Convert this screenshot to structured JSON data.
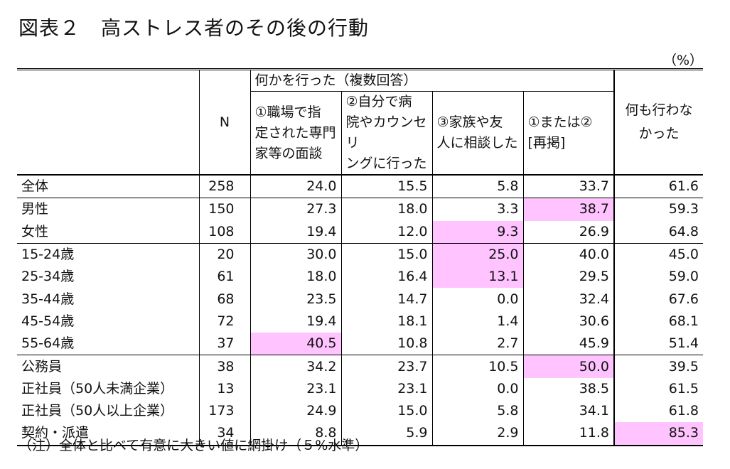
{
  "title": "図表２　高ストレス者のその後の行動",
  "unit": "（%）",
  "note": "（注）全体と比べて有意に大きい値に網掛け（５%水準）",
  "chart_data": {
    "type": "table",
    "group_header": "何かを行った（複数回答）",
    "columns": {
      "n": "N",
      "c1": [
        "①職場で指",
        "定された専門",
        "家等の面談"
      ],
      "c2": [
        "②自分で病",
        "院やカウンセリ",
        "ングに行った"
      ],
      "c3": [
        "③家族や友",
        "人に相談した"
      ],
      "c4": [
        "①または②",
        "[再掲]"
      ],
      "c5": [
        "何も行わな",
        "かった"
      ]
    },
    "rows": [
      {
        "label": "全体",
        "n": "258",
        "c1": "24.0",
        "c2": "15.5",
        "c3": "5.8",
        "c4": "33.7",
        "c5": "61.6",
        "highlight": []
      },
      {
        "label": "男性",
        "n": "150",
        "c1": "27.3",
        "c2": "18.0",
        "c3": "3.3",
        "c4": "38.7",
        "c5": "59.3",
        "highlight": [
          "c4"
        ]
      },
      {
        "label": "女性",
        "n": "108",
        "c1": "19.4",
        "c2": "12.0",
        "c3": "9.3",
        "c4": "26.9",
        "c5": "64.8",
        "highlight": [
          "c3"
        ]
      },
      {
        "label": "15-24歳",
        "n": "20",
        "c1": "30.0",
        "c2": "15.0",
        "c3": "25.0",
        "c4": "40.0",
        "c5": "45.0",
        "highlight": [
          "c3"
        ]
      },
      {
        "label": "25-34歳",
        "n": "61",
        "c1": "18.0",
        "c2": "16.4",
        "c3": "13.1",
        "c4": "29.5",
        "c5": "59.0",
        "highlight": [
          "c3"
        ]
      },
      {
        "label": "35-44歳",
        "n": "68",
        "c1": "23.5",
        "c2": "14.7",
        "c3": "0.0",
        "c4": "32.4",
        "c5": "67.6",
        "highlight": []
      },
      {
        "label": "45-54歳",
        "n": "72",
        "c1": "19.4",
        "c2": "18.1",
        "c3": "1.4",
        "c4": "30.6",
        "c5": "68.1",
        "highlight": []
      },
      {
        "label": "55-64歳",
        "n": "37",
        "c1": "40.5",
        "c2": "10.8",
        "c3": "2.7",
        "c4": "45.9",
        "c5": "51.4",
        "highlight": [
          "c1"
        ]
      },
      {
        "label": "公務員",
        "n": "38",
        "c1": "34.2",
        "c2": "23.7",
        "c3": "10.5",
        "c4": "50.0",
        "c5": "39.5",
        "highlight": [
          "c4"
        ]
      },
      {
        "label": "正社員（50人未満企業）",
        "n": "13",
        "c1": "23.1",
        "c2": "23.1",
        "c3": "0.0",
        "c4": "38.5",
        "c5": "61.5",
        "highlight": []
      },
      {
        "label": "正社員（50人以上企業）",
        "n": "173",
        "c1": "24.9",
        "c2": "15.0",
        "c3": "5.8",
        "c4": "34.1",
        "c5": "61.8",
        "highlight": []
      },
      {
        "label": "契約・派遣",
        "n": "34",
        "c1": "8.8",
        "c2": "5.9",
        "c3": "2.9",
        "c4": "11.8",
        "c5": "85.3",
        "highlight": [
          "c5"
        ]
      }
    ],
    "highlight_color": "#ffc4ff"
  }
}
